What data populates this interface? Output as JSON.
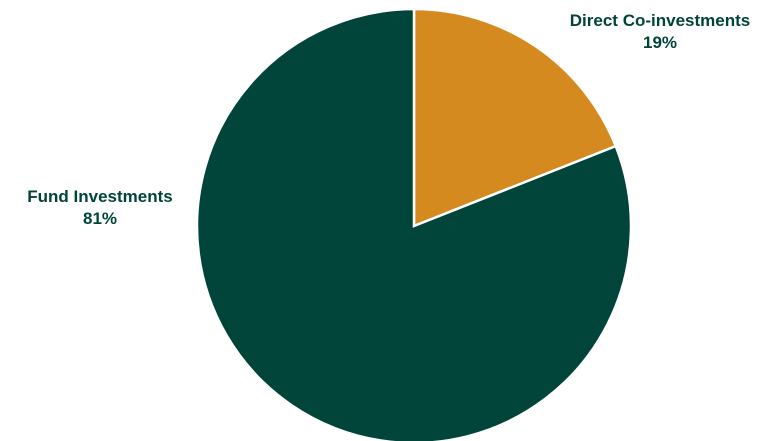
{
  "chart_data": {
    "type": "pie",
    "title": "",
    "slices": [
      {
        "name": "Direct Co-investments",
        "value": 19,
        "value_label": "19%",
        "color": "#d58a1f"
      },
      {
        "name": "Fund Investments",
        "value": 81,
        "value_label": "81%",
        "color": "#00443a"
      }
    ],
    "start_angle": "12 o'clock",
    "direction": "clockwise",
    "label_color": "#00443a",
    "separator_color": "#ffffff"
  }
}
